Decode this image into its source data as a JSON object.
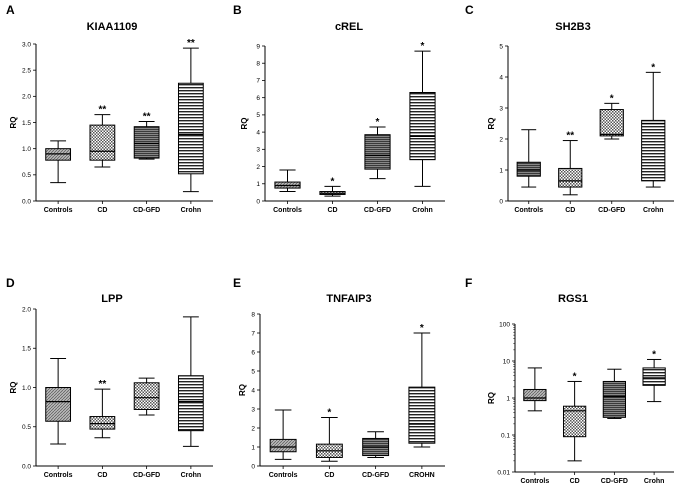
{
  "chart_data": [
    {
      "letter": "A",
      "title": "KIAA1109",
      "type": "box",
      "scale": "linear",
      "ylabel": "RQ",
      "ylim": [
        0,
        3.0
      ],
      "yticks": [
        "0.0",
        "0.5",
        "1.0",
        "1.5",
        "2.0",
        "2.5",
        "3.0"
      ],
      "ytick_values": [
        0,
        0.5,
        1,
        1.5,
        2,
        2.5,
        3
      ],
      "categories": [
        "Controls",
        "CD",
        "CD-GFD",
        "Crohn"
      ],
      "boxes": [
        {
          "min": 0.35,
          "q1": 0.78,
          "median": 0.9,
          "q3": 1.0,
          "max": 1.15,
          "sig": "",
          "pattern": "hatch-grey"
        },
        {
          "min": 0.65,
          "q1": 0.78,
          "median": 0.95,
          "q3": 1.45,
          "max": 1.65,
          "sig": "**",
          "pattern": "check"
        },
        {
          "min": 0.8,
          "q1": 0.82,
          "median": 1.1,
          "q3": 1.42,
          "max": 1.52,
          "sig": "**",
          "pattern": "dark-stripe"
        },
        {
          "min": 0.18,
          "q1": 0.52,
          "median": 1.27,
          "q3": 2.25,
          "max": 2.92,
          "sig": "**",
          "pattern": "h-lines"
        }
      ]
    },
    {
      "letter": "B",
      "title": "cREL",
      "type": "box",
      "scale": "linear",
      "ylabel": "RQ",
      "ylim": [
        0,
        9
      ],
      "yticks": [
        "0",
        "1",
        "2",
        "3",
        "4",
        "5",
        "6",
        "7",
        "8",
        "9"
      ],
      "ytick_values": [
        0,
        1,
        2,
        3,
        4,
        5,
        6,
        7,
        8,
        9
      ],
      "categories": [
        "Controls",
        "CD",
        "CD-GFD",
        "Crohn"
      ],
      "boxes": [
        {
          "min": 0.55,
          "q1": 0.75,
          "median": 0.9,
          "q3": 1.1,
          "max": 1.8,
          "sig": "",
          "pattern": "hatch-grey"
        },
        {
          "min": 0.28,
          "q1": 0.38,
          "median": 0.45,
          "q3": 0.55,
          "max": 0.85,
          "sig": "*",
          "pattern": "check"
        },
        {
          "min": 1.3,
          "q1": 1.85,
          "median": 2.65,
          "q3": 3.85,
          "max": 4.3,
          "sig": "*",
          "pattern": "dark-stripe"
        },
        {
          "min": 0.85,
          "q1": 2.4,
          "median": 3.75,
          "q3": 6.3,
          "max": 8.7,
          "sig": "*",
          "pattern": "h-lines"
        }
      ]
    },
    {
      "letter": "C",
      "title": "SH2B3",
      "type": "box",
      "scale": "linear",
      "ylabel": "RQ",
      "ylim": [
        0,
        5
      ],
      "yticks": [
        "0",
        "1",
        "2",
        "3",
        "4",
        "5"
      ],
      "ytick_values": [
        0,
        1,
        2,
        3,
        4,
        5
      ],
      "categories": [
        "Controls",
        "CD",
        "CD-GFD",
        "Crohn"
      ],
      "boxes": [
        {
          "min": 0.45,
          "q1": 0.8,
          "median": 1.0,
          "q3": 1.25,
          "max": 2.3,
          "sig": "",
          "pattern": "dark-stripe"
        },
        {
          "min": 0.2,
          "q1": 0.45,
          "median": 0.65,
          "q3": 1.05,
          "max": 1.95,
          "sig": "**",
          "pattern": "check"
        },
        {
          "min": 2.0,
          "q1": 2.1,
          "median": 2.15,
          "q3": 2.95,
          "max": 3.15,
          "sig": "*",
          "pattern": "check"
        },
        {
          "min": 0.45,
          "q1": 0.65,
          "median": 2.5,
          "q3": 2.6,
          "max": 4.15,
          "sig": "*",
          "pattern": "h-lines"
        }
      ]
    },
    {
      "letter": "D",
      "title": "LPP",
      "type": "box",
      "scale": "linear",
      "ylabel": "RQ",
      "ylim": [
        0,
        2.0
      ],
      "yticks": [
        "0.0",
        "0.5",
        "1.0",
        "1.5",
        "2.0"
      ],
      "ytick_values": [
        0,
        0.5,
        1,
        1.5,
        2
      ],
      "categories": [
        "Controls",
        "CD",
        "CD-GFD",
        "Crohn"
      ],
      "boxes": [
        {
          "min": 0.28,
          "q1": 0.57,
          "median": 0.82,
          "q3": 1.0,
          "max": 1.37,
          "sig": "",
          "pattern": "hatch-grey"
        },
        {
          "min": 0.36,
          "q1": 0.47,
          "median": 0.54,
          "q3": 0.63,
          "max": 0.98,
          "sig": "**",
          "pattern": "check"
        },
        {
          "min": 0.65,
          "q1": 0.72,
          "median": 0.87,
          "q3": 1.06,
          "max": 1.12,
          "sig": "",
          "pattern": "check"
        },
        {
          "min": 0.25,
          "q1": 0.45,
          "median": 0.82,
          "q3": 1.15,
          "max": 1.9,
          "sig": "",
          "pattern": "h-lines"
        }
      ]
    },
    {
      "letter": "E",
      "title": "TNFAIP3",
      "type": "box",
      "scale": "linear",
      "ylabel": "RQ",
      "ylim": [
        0,
        8
      ],
      "yticks": [
        "0",
        "1",
        "2",
        "3",
        "4",
        "5",
        "6",
        "7",
        "8"
      ],
      "ytick_values": [
        0,
        1,
        2,
        3,
        4,
        5,
        6,
        7,
        8
      ],
      "categories": [
        "Controls",
        "CD",
        "CD-GFD",
        "CROHN"
      ],
      "boxes": [
        {
          "min": 0.35,
          "q1": 0.75,
          "median": 1.0,
          "q3": 1.4,
          "max": 2.95,
          "sig": "",
          "pattern": "hatch-grey"
        },
        {
          "min": 0.25,
          "q1": 0.45,
          "median": 0.8,
          "q3": 1.15,
          "max": 2.55,
          "sig": "*",
          "pattern": "check"
        },
        {
          "min": 0.45,
          "q1": 0.55,
          "median": 1.0,
          "q3": 1.45,
          "max": 1.8,
          "sig": "",
          "pattern": "dark-stripe"
        },
        {
          "min": 1.0,
          "q1": 1.2,
          "median": 2.2,
          "q3": 4.15,
          "max": 7.0,
          "sig": "*",
          "pattern": "h-lines"
        }
      ]
    },
    {
      "letter": "F",
      "title": "RGS1",
      "type": "box",
      "scale": "log",
      "ylabel": "RQ",
      "ylim": [
        0.01,
        100
      ],
      "yticks": [
        "0.01",
        "0.1",
        "1",
        "10",
        "100"
      ],
      "ytick_values": [
        0.01,
        0.1,
        1,
        10,
        100
      ],
      "categories": [
        "Controls",
        "CD",
        "CD-GFD",
        "Crohn"
      ],
      "boxes": [
        {
          "min": 0.45,
          "q1": 0.85,
          "median": 1.0,
          "q3": 1.7,
          "max": 6.5,
          "sig": "",
          "pattern": "hatch-grey"
        },
        {
          "min": 0.02,
          "q1": 0.09,
          "median": 0.45,
          "q3": 0.6,
          "max": 2.8,
          "sig": "*",
          "pattern": "check"
        },
        {
          "min": 0.28,
          "q1": 0.3,
          "median": 1.1,
          "q3": 2.8,
          "max": 6.0,
          "sig": "",
          "pattern": "dark-stripe"
        },
        {
          "min": 0.8,
          "q1": 2.2,
          "median": 3.5,
          "q3": 6.5,
          "max": 11,
          "sig": "*",
          "pattern": "h-lines"
        }
      ]
    }
  ]
}
